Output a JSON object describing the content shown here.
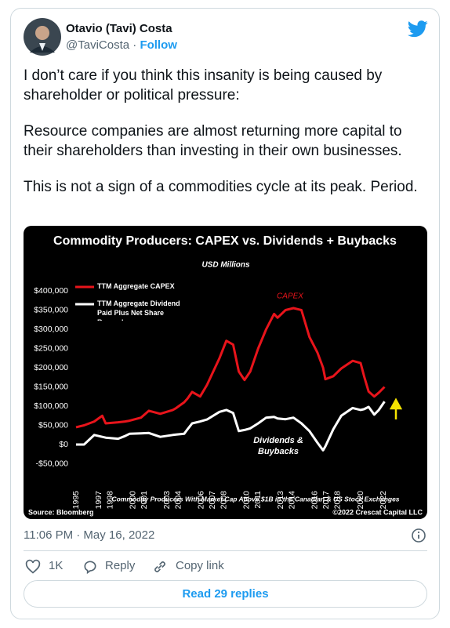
{
  "tweet": {
    "author": {
      "name": "Otavio (Tavi) Costa",
      "handle": "@TaviCosta",
      "separator": "·",
      "follow": "Follow"
    },
    "paragraphs": [
      "I don’t care if you think this insanity is being caused by shareholder or political pressure:",
      "Resource companies are almost returning more capital to their shareholders than investing in their own businesses.",
      "This is not a sign of a commodities cycle at its peak. Period."
    ],
    "timestamp": "11:06 PM · May 16, 2022",
    "actions": {
      "likes": "1K",
      "reply": "Reply",
      "copy_link": "Copy link"
    },
    "read_replies": "Read 29 replies"
  },
  "chart_data": {
    "type": "line",
    "title": "Commodity Producers: CAPEX vs. Dividends + Buybacks",
    "subtitle": "USD Millions",
    "x": [
      1995.0,
      1995.7,
      1996.6,
      1997.3,
      1997.6,
      1998.7,
      1999.3,
      1999.7,
      2000.7,
      2001.4,
      2002.4,
      2003.5,
      2003.8,
      2004.5,
      2004.8,
      2005.2,
      2005.9,
      2006.5,
      2007.6,
      2008.2,
      2008.8,
      2009.3,
      2009.8,
      2010.3,
      2011.0,
      2011.7,
      2012.4,
      2012.7,
      2013.4,
      2014.1,
      2014.8,
      2015.5,
      2016.2,
      2016.7,
      2016.9,
      2017.6,
      2018.3,
      2019.3,
      2020.0,
      2020.3,
      2020.7,
      2021.2,
      2021.6,
      2022.1
    ],
    "series": [
      {
        "name": "TTM Aggregate CAPEX",
        "color": "#e8141b",
        "values": [
          45000,
          50000,
          60000,
          75000,
          55000,
          58000,
          60000,
          62000,
          70000,
          88000,
          80000,
          90000,
          95000,
          110000,
          120000,
          137000,
          125000,
          155000,
          225000,
          270000,
          260000,
          190000,
          168000,
          190000,
          250000,
          300000,
          340000,
          330000,
          350000,
          355000,
          350000,
          280000,
          240000,
          200000,
          170000,
          178000,
          198000,
          218000,
          212000,
          178000,
          138000,
          125000,
          135000,
          150000
        ]
      },
      {
        "name": "TTM Aggregate Dividend Paid Plus Net Share Repurchase",
        "color": "#ffffff",
        "values": [
          0,
          0,
          25000,
          20000,
          18000,
          15000,
          22000,
          28000,
          29000,
          30000,
          20000,
          25000,
          26000,
          28000,
          40000,
          55000,
          60000,
          65000,
          85000,
          90000,
          82000,
          35000,
          38000,
          42000,
          55000,
          70000,
          72000,
          68000,
          66000,
          70000,
          55000,
          35000,
          5000,
          -15000,
          -5000,
          40000,
          75000,
          95000,
          90000,
          92000,
          98000,
          78000,
          90000,
          112000
        ]
      }
    ],
    "xlim": [
      1995,
      2022.5
    ],
    "xticks": [
      1995,
      1997,
      1998,
      2000,
      2001,
      2003,
      2004,
      2006,
      2007,
      2008,
      2010,
      2011,
      2013,
      2014,
      2016,
      2017,
      2018,
      2020,
      2022
    ],
    "ylim": [
      -60000,
      420000
    ],
    "yticks": [
      {
        "value": -50000,
        "label": "-$50,000"
      },
      {
        "value": 0,
        "label": "$0"
      },
      {
        "value": 50000,
        "label": "$50,000"
      },
      {
        "value": 100000,
        "label": "$100,000"
      },
      {
        "value": 150000,
        "label": "$150,000"
      },
      {
        "value": 200000,
        "label": "$200,000"
      },
      {
        "value": 250000,
        "label": "$250,000"
      },
      {
        "value": 300000,
        "label": "$300,000"
      },
      {
        "value": 350000,
        "label": "$350,000"
      },
      {
        "value": 400000,
        "label": "$400,000"
      }
    ],
    "annotations": [
      "CAPEX",
      "Dividends & Buybacks"
    ],
    "footnote": "Commodity Producers With Market Cap Above $1B in the Canadian & US Stock Exchanges",
    "source": "Source: Bloomberg",
    "copyright": "©2022 Crescat Capital LLC"
  }
}
